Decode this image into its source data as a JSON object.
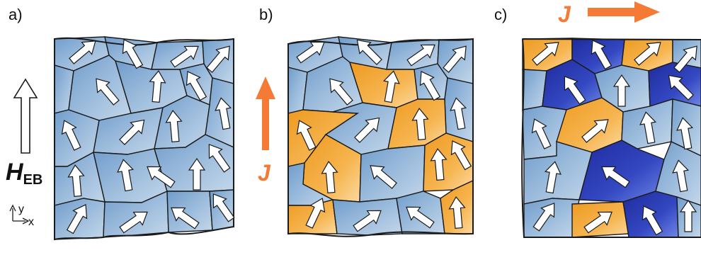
{
  "panels": [
    {
      "label": "a)"
    },
    {
      "label": "b)"
    },
    {
      "label": "c)"
    }
  ],
  "current": {
    "symbol": "J"
  },
  "field": {
    "symbol": "H",
    "subscript": "EB"
  },
  "axes": {
    "y": "y",
    "x": "x"
  },
  "colors": {
    "grain_fill": "#8fb3d8",
    "grain_stroke": "#1a1a1a",
    "flipped_fill": "#f3a93c",
    "dark_fill": "#2f3fb3",
    "current_arrow": "#f47a36",
    "magnetization_arrow": "#ffffff"
  }
}
